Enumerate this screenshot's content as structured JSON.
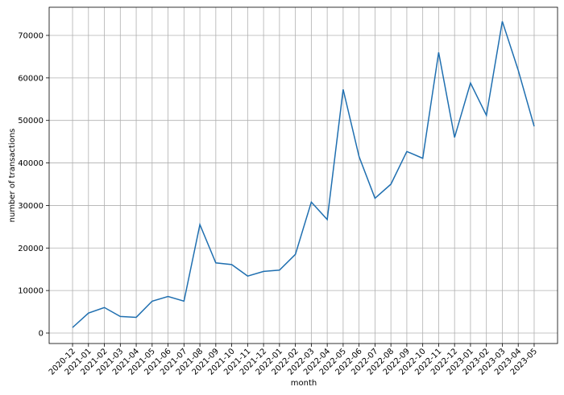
{
  "chart_data": {
    "type": "line",
    "x_label": "month",
    "y_label": "number of transactions",
    "categories": [
      "2020-12",
      "2021-01",
      "2021-02",
      "2021-03",
      "2021-04",
      "2021-05",
      "2021-06",
      "2021-07",
      "2021-08",
      "2021-09",
      "2021-10",
      "2021-11",
      "2021-12",
      "2022-01",
      "2022-02",
      "2022-03",
      "2022-04",
      "2022-05",
      "2022-06",
      "2022-07",
      "2022-08",
      "2022-09",
      "2022-10",
      "2022-11",
      "2022-12",
      "2023-01",
      "2023-02",
      "2023-03",
      "2023-04",
      "2023-05"
    ],
    "values": [
      1300,
      4700,
      6000,
      3900,
      3700,
      7500,
      8600,
      7500,
      25500,
      16500,
      16100,
      13400,
      14500,
      14800,
      18500,
      30800,
      26700,
      57300,
      41500,
      31700,
      35000,
      42700,
      41100,
      66000,
      46000,
      58800,
      51200,
      73300,
      61800,
      48600
    ],
    "color": "#1f6fb0",
    "ylim": [
      -2460,
      76620
    ],
    "yticks": [
      0,
      10000,
      20000,
      30000,
      40000,
      50000,
      60000,
      70000
    ],
    "grid": true
  }
}
